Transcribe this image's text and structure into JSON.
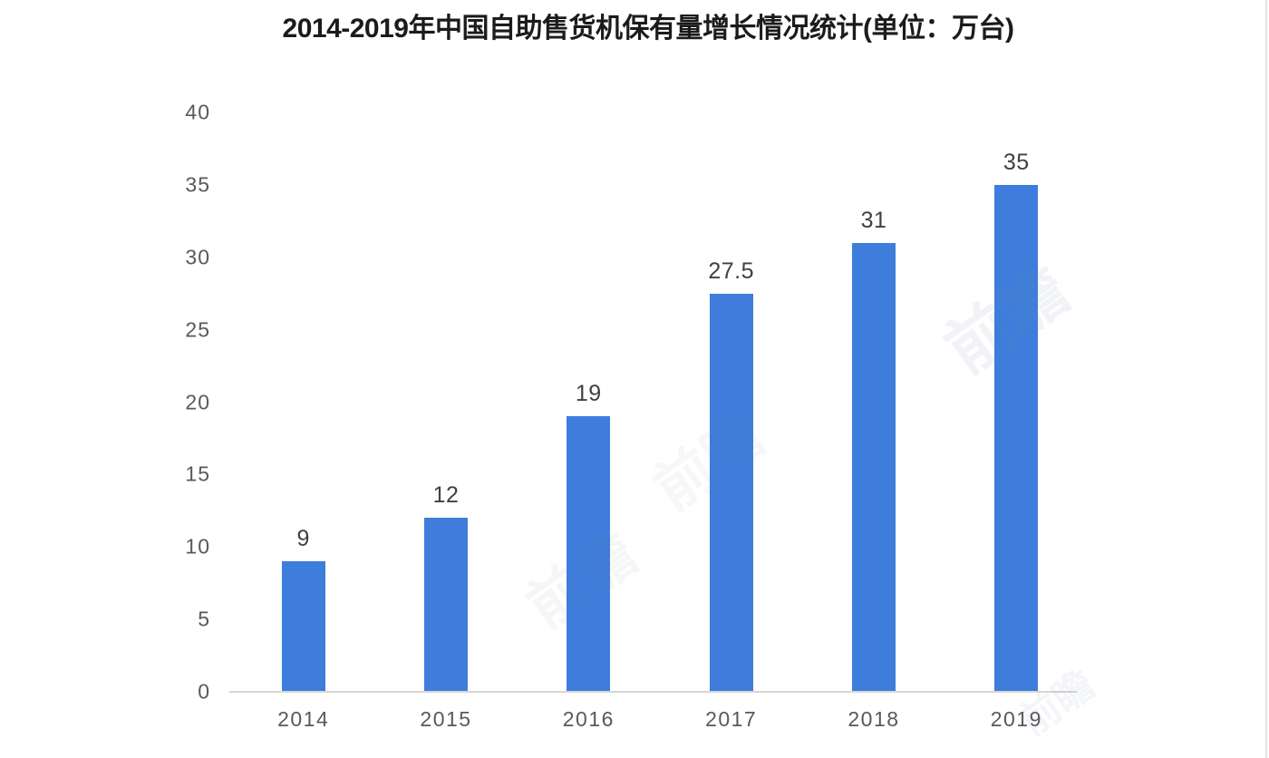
{
  "title": "2014-2019年中国自助售货机保有量增长情况统计(单位：万台)",
  "watermark_text": "前瞻",
  "colors": {
    "bar": "#3E7DDB",
    "title_text": "#1B1B1B",
    "data_label": "#404040",
    "axis_label": "#595959",
    "axis_line": "#D6D6D6"
  },
  "chart_data": {
    "type": "bar",
    "title": "2014-2019年中国自助售货机保有量增长情况统计(单位：万台)",
    "categories": [
      "2014",
      "2015",
      "2016",
      "2017",
      "2018",
      "2019"
    ],
    "values": [
      9,
      12,
      19,
      27.5,
      31,
      35
    ],
    "data_labels": [
      "9",
      "12",
      "19",
      "27.5",
      "31",
      "35"
    ],
    "xlabel": "",
    "ylabel": "",
    "unit": "万台",
    "ylim": [
      0,
      40
    ],
    "yticks": [
      0,
      5,
      10,
      15,
      20,
      25,
      30,
      35,
      40
    ],
    "grid": false,
    "legend": false,
    "bar_color": "#3E7DDB"
  }
}
